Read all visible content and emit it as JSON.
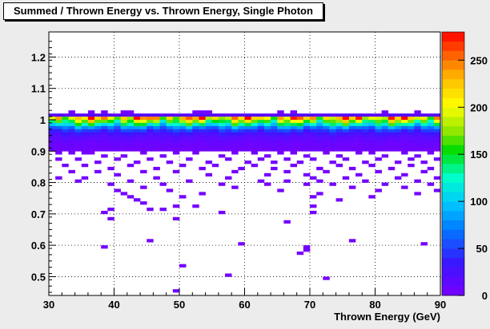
{
  "chart_data": {
    "type": "heatmap",
    "title": "Summed / Thrown Energy vs. Thrown Energy, Single Photon",
    "xlabel": "Thrown Energy (GeV)",
    "ylabel": "",
    "xlim": [
      30,
      90
    ],
    "ylim": [
      0.44,
      1.28
    ],
    "x_ticks": [
      "30",
      "40",
      "50",
      "60",
      "70",
      "80",
      "90"
    ],
    "y_ticks": [
      "0.5",
      "0.6",
      "0.7",
      "0.8",
      "0.9",
      "1",
      "1.1",
      "1.2"
    ],
    "z_ticks": [
      "0",
      "50",
      "100",
      "150",
      "200",
      "250"
    ],
    "zlim": [
      0,
      280
    ],
    "grid": true,
    "colorbar": "right",
    "bin_width_x": 1,
    "bin_height_y": 0.01,
    "band_profile": [
      {
        "y": 1.01,
        "z": 18
      },
      {
        "y": 1.0,
        "z": 220
      },
      {
        "y": 0.99,
        "z": 170
      },
      {
        "y": 0.98,
        "z": 125
      },
      {
        "y": 0.97,
        "z": 75
      },
      {
        "y": 0.96,
        "z": 45
      },
      {
        "y": 0.95,
        "z": 28
      },
      {
        "y": 0.94,
        "z": 18
      },
      {
        "y": 0.93,
        "z": 12
      },
      {
        "y": 0.92,
        "z": 8
      },
      {
        "y": 0.91,
        "z": 6
      },
      {
        "y": 0.9,
        "z": 4
      }
    ],
    "sparse_bins": [
      [
        33,
        1.02,
        4
      ],
      [
        36,
        1.02,
        3
      ],
      [
        38,
        1.02,
        3
      ],
      [
        41,
        1.02,
        4
      ],
      [
        42,
        1.02,
        3
      ],
      [
        52,
        1.02,
        4
      ],
      [
        53,
        1.02,
        4
      ],
      [
        54,
        1.02,
        3
      ],
      [
        65,
        1.02,
        3
      ],
      [
        67,
        1.02,
        3
      ],
      [
        81,
        1.02,
        3
      ],
      [
        86,
        1.02,
        3
      ],
      [
        31,
        0.89,
        3
      ],
      [
        33,
        0.89,
        3
      ],
      [
        35,
        0.89,
        3
      ],
      [
        36,
        0.89,
        2
      ],
      [
        38,
        0.88,
        3
      ],
      [
        41,
        0.88,
        2
      ],
      [
        44,
        0.89,
        3
      ],
      [
        47,
        0.88,
        2
      ],
      [
        49,
        0.89,
        3
      ],
      [
        52,
        0.89,
        2
      ],
      [
        56,
        0.88,
        3
      ],
      [
        58,
        0.89,
        2
      ],
      [
        61,
        0.89,
        3
      ],
      [
        63,
        0.88,
        2
      ],
      [
        65,
        0.89,
        2
      ],
      [
        67,
        0.89,
        3
      ],
      [
        69,
        0.88,
        2
      ],
      [
        72,
        0.89,
        3
      ],
      [
        74,
        0.88,
        2
      ],
      [
        77,
        0.89,
        3
      ],
      [
        79,
        0.89,
        2
      ],
      [
        81,
        0.88,
        3
      ],
      [
        84,
        0.89,
        2
      ],
      [
        86,
        0.88,
        3
      ],
      [
        88,
        0.89,
        2
      ],
      [
        31,
        0.87,
        2
      ],
      [
        34,
        0.87,
        2
      ],
      [
        37,
        0.86,
        2
      ],
      [
        40,
        0.87,
        2
      ],
      [
        43,
        0.86,
        2
      ],
      [
        45,
        0.87,
        2
      ],
      [
        48,
        0.86,
        2
      ],
      [
        51,
        0.87,
        2
      ],
      [
        54,
        0.86,
        2
      ],
      [
        57,
        0.87,
        2
      ],
      [
        60,
        0.86,
        2
      ],
      [
        62,
        0.87,
        2
      ],
      [
        64,
        0.86,
        2
      ],
      [
        66,
        0.87,
        2
      ],
      [
        68,
        0.86,
        2
      ],
      [
        70,
        0.87,
        2
      ],
      [
        73,
        0.86,
        2
      ],
      [
        75,
        0.87,
        2
      ],
      [
        78,
        0.86,
        2
      ],
      [
        80,
        0.87,
        2
      ],
      [
        83,
        0.86,
        2
      ],
      [
        85,
        0.87,
        2
      ],
      [
        87,
        0.86,
        2
      ],
      [
        89,
        0.87,
        2
      ],
      [
        32,
        0.85,
        2
      ],
      [
        35,
        0.85,
        2
      ],
      [
        39,
        0.84,
        2
      ],
      [
        42,
        0.85,
        2
      ],
      [
        46,
        0.84,
        2
      ],
      [
        50,
        0.85,
        2
      ],
      [
        53,
        0.84,
        2
      ],
      [
        55,
        0.85,
        2
      ],
      [
        59,
        0.84,
        2
      ],
      [
        61,
        0.85,
        2
      ],
      [
        64,
        0.84,
        2
      ],
      [
        67,
        0.85,
        2
      ],
      [
        71,
        0.84,
        2
      ],
      [
        74,
        0.85,
        2
      ],
      [
        76,
        0.84,
        2
      ],
      [
        79,
        0.85,
        2
      ],
      [
        82,
        0.84,
        2
      ],
      [
        85,
        0.85,
        2
      ],
      [
        88,
        0.84,
        2
      ],
      [
        33,
        0.83,
        2
      ],
      [
        37,
        0.83,
        2
      ],
      [
        40,
        0.82,
        2
      ],
      [
        44,
        0.83,
        2
      ],
      [
        49,
        0.83,
        2
      ],
      [
        54,
        0.82,
        2
      ],
      [
        58,
        0.83,
        2
      ],
      [
        63,
        0.82,
        2
      ],
      [
        66,
        0.83,
        2
      ],
      [
        69,
        0.82,
        2
      ],
      [
        72,
        0.83,
        2
      ],
      [
        77,
        0.82,
        2
      ],
      [
        80,
        0.83,
        2
      ],
      [
        84,
        0.82,
        2
      ],
      [
        87,
        0.83,
        2
      ],
      [
        31,
        0.81,
        2
      ],
      [
        35,
        0.81,
        2
      ],
      [
        46,
        0.81,
        2
      ],
      [
        57,
        0.81,
        2
      ],
      [
        70,
        0.81,
        2
      ],
      [
        75,
        0.81,
        2
      ],
      [
        83,
        0.81,
        2
      ],
      [
        89,
        0.81,
        2
      ],
      [
        34,
        0.8,
        2
      ],
      [
        42,
        0.8,
        2
      ],
      [
        51,
        0.8,
        2
      ],
      [
        62,
        0.8,
        2
      ],
      [
        66,
        0.8,
        2
      ],
      [
        71,
        0.8,
        2
      ],
      [
        78,
        0.8,
        2
      ],
      [
        86,
        0.8,
        2
      ],
      [
        39,
        0.79,
        2
      ],
      [
        47,
        0.79,
        2
      ],
      [
        56,
        0.79,
        2
      ],
      [
        63,
        0.79,
        2
      ],
      [
        69,
        0.79,
        2
      ],
      [
        73,
        0.79,
        2
      ],
      [
        81,
        0.79,
        2
      ],
      [
        88,
        0.79,
        2
      ],
      [
        44,
        0.78,
        2
      ],
      [
        58,
        0.78,
        2
      ],
      [
        76,
        0.78,
        2
      ],
      [
        84,
        0.78,
        2
      ],
      [
        40,
        0.77,
        2
      ],
      [
        48,
        0.77,
        2
      ],
      [
        65,
        0.77,
        2
      ],
      [
        80,
        0.77,
        2
      ],
      [
        89,
        0.77,
        2
      ],
      [
        41,
        0.76,
        2
      ],
      [
        53,
        0.76,
        2
      ],
      [
        71,
        0.76,
        2
      ],
      [
        86,
        0.76,
        2
      ],
      [
        42,
        0.75,
        2
      ],
      [
        50,
        0.75,
        2
      ],
      [
        70,
        0.75,
        2
      ],
      [
        79,
        0.75,
        2
      ],
      [
        43,
        0.74,
        2
      ],
      [
        74,
        0.74,
        2
      ],
      [
        44,
        0.73,
        2
      ],
      [
        49,
        0.72,
        2
      ],
      [
        39,
        0.71,
        2
      ],
      [
        45,
        0.71,
        2
      ],
      [
        47,
        0.71,
        2
      ],
      [
        52,
        0.72,
        2
      ],
      [
        70,
        0.72,
        2
      ],
      [
        38,
        0.7,
        2
      ],
      [
        56,
        0.7,
        2
      ],
      [
        70,
        0.7,
        2
      ],
      [
        39,
        0.68,
        2
      ],
      [
        49,
        0.68,
        2
      ],
      [
        66,
        0.67,
        2
      ],
      [
        45,
        0.61,
        2
      ],
      [
        59,
        0.6,
        2
      ],
      [
        38,
        0.59,
        2
      ],
      [
        69,
        0.59,
        2
      ],
      [
        76,
        0.61,
        2
      ],
      [
        87,
        0.6,
        2
      ],
      [
        69,
        0.58,
        2
      ],
      [
        68,
        0.57,
        2
      ],
      [
        50,
        0.53,
        2
      ],
      [
        57,
        0.5,
        2
      ],
      [
        72,
        0.49,
        2
      ],
      [
        49,
        0.45,
        2
      ]
    ]
  }
}
